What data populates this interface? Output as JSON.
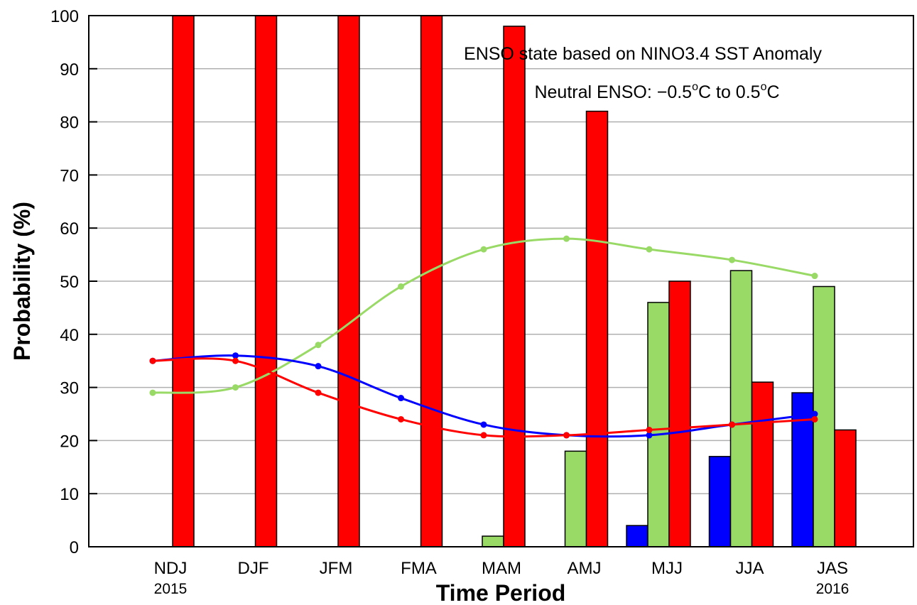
{
  "chart_data": {
    "type": "bar",
    "ylabel": "Probability (%)",
    "xlabel": "Time Period",
    "ylim": [
      0,
      100
    ],
    "yticks": [
      0,
      10,
      20,
      30,
      40,
      50,
      60,
      70,
      80,
      90,
      100
    ],
    "grid": true,
    "categories": [
      "NDJ",
      "DJF",
      "JFM",
      "FMA",
      "MAM",
      "AMJ",
      "MJJ",
      "JJA",
      "JAS"
    ],
    "year_labels": [
      {
        "category_index": 0,
        "text": "2015"
      },
      {
        "category_index": 8,
        "text": "2016"
      }
    ],
    "annotations": {
      "line1": "ENSO state based on NINO3.4 SST Anomaly",
      "line2_prefix": "Neutral ENSO: −0.5",
      "line2_sup1": "o",
      "line2_mid": "C to 0.5",
      "line2_sup2": "o",
      "line2_suffix": "C"
    },
    "bar_series": [
      {
        "color": "#0000ff",
        "values": [
          0,
          0,
          0,
          0,
          0,
          0,
          4,
          17,
          29
        ]
      },
      {
        "color": "#99d966",
        "values": [
          0,
          0,
          0,
          0,
          2,
          18,
          46,
          52,
          49
        ]
      },
      {
        "color": "#ff0000",
        "values": [
          100,
          100,
          100,
          100,
          98,
          82,
          50,
          31,
          22
        ]
      }
    ],
    "line_series": [
      {
        "color": "#99d966",
        "values": [
          29,
          30,
          38,
          49,
          56,
          58,
          56,
          54,
          51
        ]
      },
      {
        "color": "#0000ff",
        "values": [
          35,
          36,
          34,
          28,
          23,
          21,
          21,
          23,
          25
        ]
      },
      {
        "color": "#ff0000",
        "values": [
          35,
          35,
          29,
          24,
          21,
          21,
          22,
          23,
          24
        ]
      }
    ]
  }
}
